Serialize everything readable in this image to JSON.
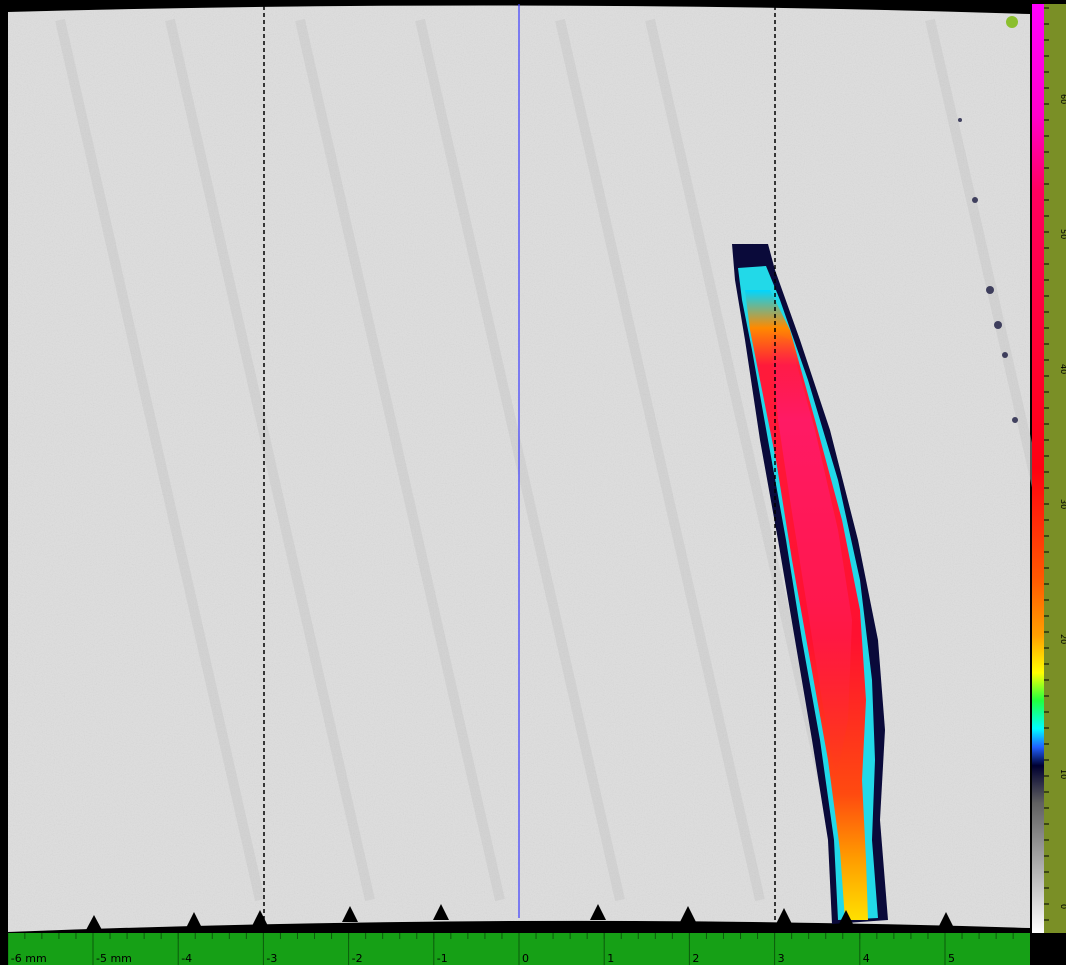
{
  "scan": {
    "cursor_position_mm": 0,
    "reference_lines_mm": [
      -3,
      3
    ]
  },
  "horizontal_scale": {
    "unit": "mm",
    "ticks": [
      {
        "value": -6,
        "label": "-6 mm"
      },
      {
        "value": -5,
        "label": "-5 mm"
      },
      {
        "value": -4,
        "label": "-4"
      },
      {
        "value": -3,
        "label": "-3"
      },
      {
        "value": -2,
        "label": "-2"
      },
      {
        "value": -1,
        "label": "-1"
      },
      {
        "value": 0,
        "label": "0"
      },
      {
        "value": 1,
        "label": "1"
      },
      {
        "value": 2,
        "label": "2"
      },
      {
        "value": 3,
        "label": "3"
      },
      {
        "value": 4,
        "label": "4"
      },
      {
        "value": 5,
        "label": "5"
      }
    ]
  },
  "vertical_scale": {
    "labels": [
      "60",
      "50",
      "40",
      "30",
      "20",
      "10",
      "0"
    ]
  },
  "colors": {
    "scale_green": "#16a016",
    "vertical_scale_olive": "#7a8f26",
    "cursor_blue": "#3b3bff",
    "background_gray": "#dcdcdc",
    "indicator_dot": "#8bbf2e"
  }
}
